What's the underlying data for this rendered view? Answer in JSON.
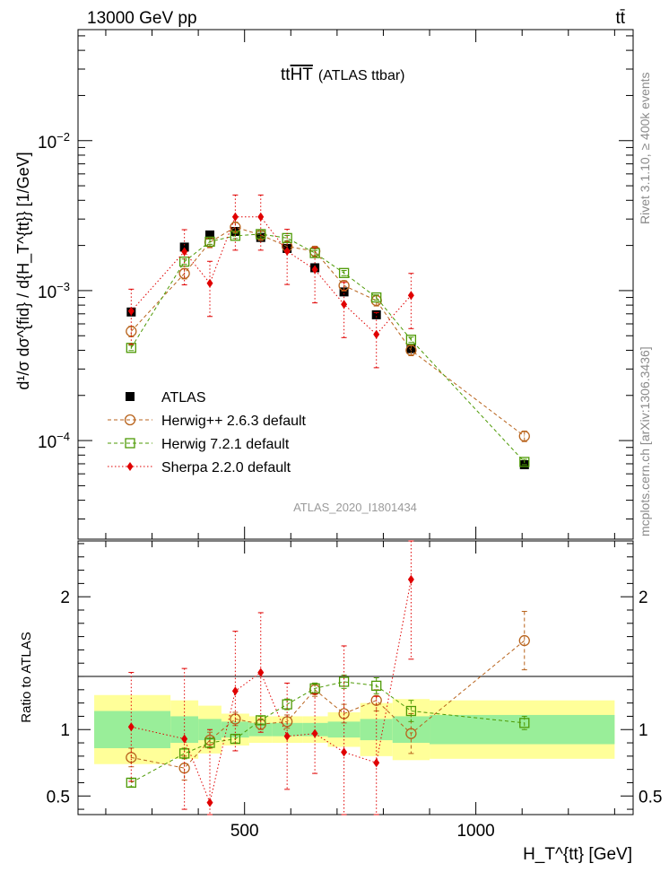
{
  "header": {
    "energy_label": "13000 GeV pp",
    "process_label": "tt̄"
  },
  "chart_data": {
    "type": "scatter",
    "title_base": "tt",
    "title_over": "HT",
    "title_suffix": "(ATLAS ttbar)",
    "analysis_id": "ATLAS_2020_I1801434",
    "side_label_top": "Rivet 3.1.10, ≥ 400k events",
    "side_label_bottom": "mcplots.cern.ch [arXiv:1306.3436]",
    "ylabel": "d¹/σ dσ^{fid} / d{H_T^{tt}} [1/GeV]",
    "xlabel": "H_T^{tt} [GeV]",
    "ratio_ylabel": "Ratio to ATLAS",
    "xlim": [
      140,
      1340
    ],
    "ylim_main": [
      2.2e-05,
      0.055
    ],
    "ylim_ratio": [
      0.36,
      2.42
    ],
    "x_ticks": [
      500,
      1000
    ],
    "main_y_ticks": [
      "10^{-4}",
      "10^{-3}",
      "10^{-2}"
    ],
    "ratio_y_ticks": [
      0.5,
      1,
      2
    ],
    "bins": [
      [
        175,
        340
      ],
      [
        340,
        400
      ],
      [
        400,
        450
      ],
      [
        450,
        510
      ],
      [
        510,
        560
      ],
      [
        560,
        625
      ],
      [
        625,
        680
      ],
      [
        680,
        750
      ],
      [
        750,
        820
      ],
      [
        820,
        900
      ],
      [
        900,
        1300
      ]
    ],
    "x": [
      255,
      370,
      425,
      480,
      535,
      592,
      652,
      715,
      785,
      860,
      1105
    ],
    "data_band_inner": [
      0.14,
      0.1,
      0.08,
      0.06,
      0.05,
      0.05,
      0.05,
      0.06,
      0.08,
      0.1,
      0.11
    ],
    "data_band_outer": [
      0.26,
      0.22,
      0.18,
      0.12,
      0.1,
      0.1,
      0.1,
      0.13,
      0.2,
      0.23,
      0.22
    ],
    "legend": [
      "ATLAS",
      "Herwig++ 2.6.3 default",
      "Herwig 7.2.1 default",
      "Sherpa 2.2.0 default"
    ],
    "series": [
      {
        "name": "ATLAS",
        "color": "#000000",
        "marker": "square-filled",
        "values": [
          0.00072,
          0.00195,
          0.00235,
          0.00248,
          0.00226,
          0.00191,
          0.00142,
          0.00098,
          0.00069,
          0.00041,
          6.9e-05
        ]
      },
      {
        "name": "Herwig++ 2.6.3 default",
        "color": "#b8631c",
        "marker": "circle-open",
        "values": [
          0.000535,
          0.0013,
          0.0021,
          0.00265,
          0.00235,
          0.00197,
          0.00183,
          0.00108,
          0.000858,
          0.0004,
          0.000107
        ],
        "ratio": [
          0.79,
          0.71,
          0.92,
          1.08,
          1.04,
          1.06,
          1.3,
          1.12,
          1.22,
          0.97,
          1.67
        ],
        "ratio_err": [
          0.07,
          0.09,
          0.06,
          0.05,
          0.04,
          0.05,
          0.05,
          0.07,
          0.08,
          0.15,
          0.22
        ]
      },
      {
        "name": "Herwig 7.2.1 default",
        "color": "#4e9a06",
        "marker": "square-open",
        "values": [
          0.000415,
          0.00156,
          0.00212,
          0.00232,
          0.00238,
          0.00224,
          0.00178,
          0.00131,
          0.0009,
          0.00047,
          7.2e-05
        ],
        "ratio": [
          0.6,
          0.82,
          0.9,
          0.93,
          1.07,
          1.19,
          1.31,
          1.36,
          1.33,
          1.14,
          1.05
        ],
        "ratio_err": [
          0.03,
          0.04,
          0.03,
          0.03,
          0.03,
          0.04,
          0.04,
          0.05,
          0.06,
          0.08,
          0.05
        ]
      },
      {
        "name": "Sherpa 2.2.0 default",
        "color": "#e00000",
        "marker": "diamond-filled",
        "values": [
          0.00073,
          0.00182,
          0.00112,
          0.0031,
          0.0031,
          0.00183,
          0.00138,
          0.00081,
          0.00051,
          0.00093,
          null
        ],
        "ratio": [
          1.02,
          0.93,
          0.45,
          1.29,
          1.43,
          0.95,
          0.97,
          0.83,
          0.75,
          2.13,
          null
        ],
        "ratio_err": [
          0.41,
          0.53,
          0.55,
          0.45,
          0.45,
          0.4,
          0.3,
          0.8,
          0.5,
          0.6,
          null
        ]
      }
    ]
  }
}
